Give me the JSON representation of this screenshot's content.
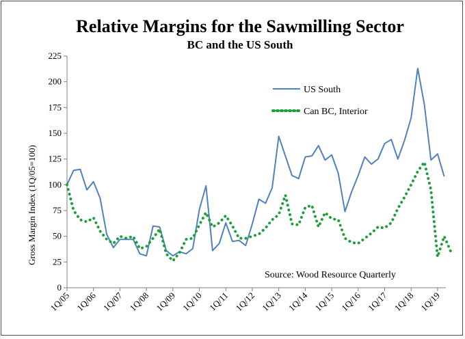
{
  "chart_data": {
    "type": "line",
    "title": "Relative Margins for the Sawmilling Sector",
    "subtitle": "BC and the US South",
    "ylabel": "Gross Margin Index (1Q/05=100)",
    "xlabel": "",
    "ylim": [
      0,
      225
    ],
    "yticks": [
      0,
      25,
      50,
      75,
      100,
      125,
      150,
      175,
      200,
      225
    ],
    "xticks": [
      "1Q/05",
      "1Q/06",
      "1Q/07",
      "1Q/08",
      "1Q/09",
      "1Q/10",
      "1Q/11",
      "1Q/12",
      "1Q/13",
      "1Q/14",
      "1Q/15",
      "1Q/16",
      "1Q/17",
      "1Q/18",
      "1Q/19"
    ],
    "source": "Source: Wood Resource Quarterly",
    "legend_position": "top-right",
    "series": [
      {
        "name": "US South",
        "color": "#4f81bd",
        "style": "solid",
        "values": [
          100,
          114,
          115,
          95,
          103,
          87,
          52,
          39,
          47,
          47,
          47,
          33,
          31,
          60,
          59,
          36,
          31,
          35,
          33,
          38,
          76,
          99,
          36,
          43,
          63,
          45,
          46,
          41,
          62,
          86,
          82,
          97,
          147,
          128,
          109,
          106,
          127,
          128,
          138,
          124,
          129,
          111,
          74,
          93,
          109,
          127,
          120,
          125,
          140,
          144,
          125,
          143,
          165,
          213,
          178,
          124,
          130,
          108
        ]
      },
      {
        "name": "Can BC, Interior",
        "color": "#1e9e3a",
        "style": "dotted",
        "values": [
          100,
          75,
          66,
          64,
          68,
          55,
          47,
          43,
          50,
          48,
          50,
          38,
          40,
          48,
          57,
          33,
          26,
          34,
          47,
          48,
          61,
          73,
          59,
          63,
          70,
          60,
          48,
          48,
          50,
          52,
          58,
          66,
          71,
          90,
          62,
          61,
          78,
          80,
          59,
          73,
          67,
          66,
          48,
          44,
          43,
          48,
          53,
          59,
          58,
          63,
          77,
          88,
          100,
          113,
          122,
          95,
          30,
          50,
          35
        ]
      }
    ]
  }
}
